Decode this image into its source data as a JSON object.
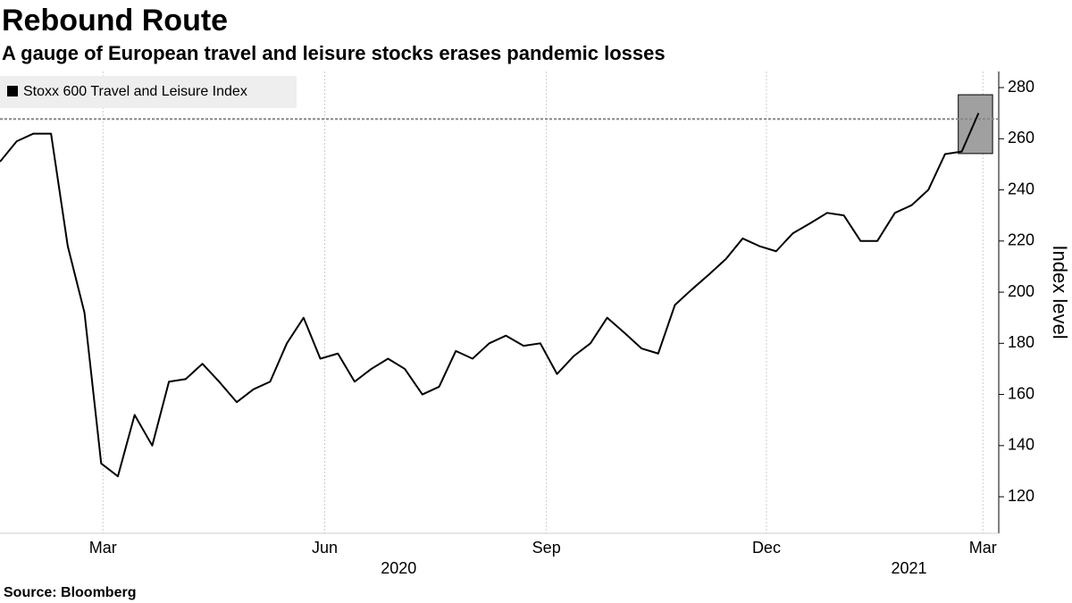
{
  "chart_data": {
    "type": "line",
    "title": "Rebound Route",
    "subtitle": "A gauge of European travel and leisure stocks erases pandemic losses",
    "y_axis_label": "Index level",
    "source": "Source: Bloomberg",
    "x": [
      2020.047,
      2020.066,
      2020.085,
      2020.105,
      2020.124,
      2020.143,
      2020.162,
      2020.181,
      2020.2,
      2020.22,
      2020.239,
      2020.258,
      2020.277,
      2020.296,
      2020.316,
      2020.335,
      2020.354,
      2020.373,
      2020.392,
      2020.411,
      2020.431,
      2020.45,
      2020.469,
      2020.488,
      2020.507,
      2020.527,
      2020.546,
      2020.565,
      2020.584,
      2020.603,
      2020.622,
      2020.642,
      2020.661,
      2020.68,
      2020.699,
      2020.718,
      2020.737,
      2020.757,
      2020.776,
      2020.795,
      2020.814,
      2020.833,
      2020.853,
      2020.872,
      2020.891,
      2020.91,
      2020.929,
      2020.948,
      2020.968,
      2020.987,
      2021.006,
      2021.025,
      2021.044,
      2021.064,
      2021.083,
      2021.102,
      2021.121,
      2021.14,
      2021.159
    ],
    "series": [
      {
        "name": "Stoxx 600 Travel and Leisure Index",
        "color": "#000000",
        "values": [
          251,
          259,
          262,
          262,
          218,
          192,
          133,
          128,
          152,
          140,
          165,
          166,
          172,
          165,
          157,
          162,
          165,
          180,
          190,
          174,
          176,
          165,
          170,
          174,
          170,
          160,
          163,
          177,
          174,
          180,
          183,
          179,
          180,
          168,
          175,
          180,
          190,
          184,
          178,
          176,
          195,
          201,
          207,
          213,
          221,
          218,
          216,
          223,
          227,
          231,
          230,
          220,
          220,
          231,
          234,
          240,
          254,
          255,
          270
        ]
      }
    ],
    "xlim": [
      2020.047,
      2021.182
    ],
    "xticks": [
      {
        "value": 2020.164,
        "label": "Mar"
      },
      {
        "value": 2020.416,
        "label": "Jun"
      },
      {
        "value": 2020.668,
        "label": "Sep"
      },
      {
        "value": 2020.918,
        "label": "Dec"
      },
      {
        "value": 2021.164,
        "label": "Mar"
      }
    ],
    "year_ticks": [
      {
        "value": 2020.5,
        "label": "2020"
      },
      {
        "value": 2021.08,
        "label": "2021"
      }
    ],
    "ylim": [
      105.7,
      286.3
    ],
    "yticks": [
      120,
      140,
      160,
      180,
      200,
      220,
      240,
      260,
      280
    ],
    "reference_line": 267.7,
    "highlight": {
      "xlim": [
        2021.136,
        2021.175
      ],
      "ylim": [
        254.2,
        277.2
      ]
    },
    "grid": true
  }
}
